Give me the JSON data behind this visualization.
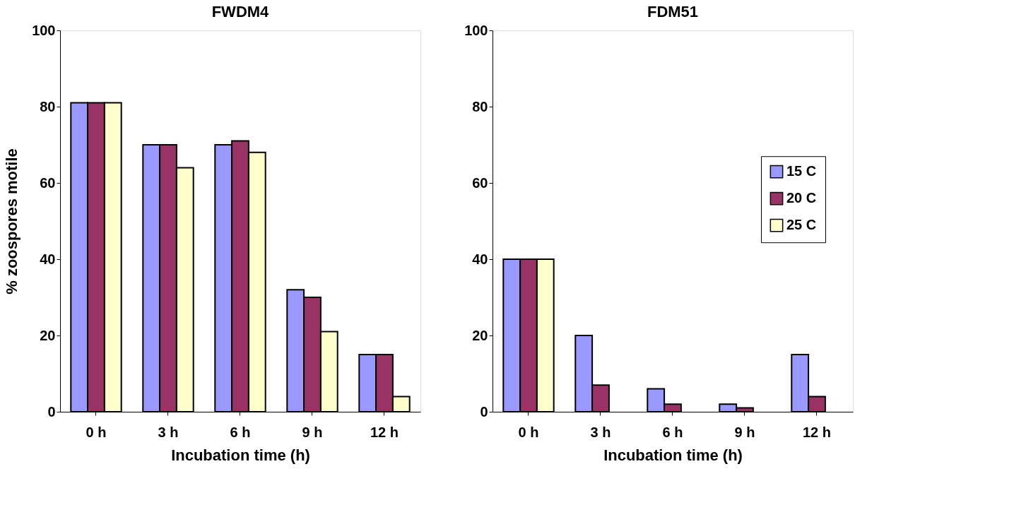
{
  "chart_data": [
    {
      "type": "bar",
      "title": "FWDM4",
      "xlabel": "Incubation time (h)",
      "ylabel": "% zoospores motile",
      "categories": [
        "0 h",
        "3 h",
        "6 h",
        "9 h",
        "12 h"
      ],
      "series": [
        {
          "color": "#9999ff",
          "values": [
            81,
            70,
            70,
            32,
            15
          ]
        },
        {
          "color": "#993366",
          "values": [
            81,
            70,
            71,
            30,
            15
          ]
        },
        {
          "color": "#ffffcc",
          "values": [
            81,
            64,
            68,
            21,
            4
          ]
        }
      ],
      "ylim": [
        0,
        100
      ],
      "yticks": [
        0,
        20,
        40,
        60,
        80,
        100
      ],
      "grid": false,
      "legend": false
    },
    {
      "type": "bar",
      "title": "FDM51",
      "xlabel": "Incubation time (h)",
      "categories": [
        "0 h",
        "3 h",
        "6 h",
        "9 h",
        "12 h"
      ],
      "series": [
        {
          "name": "15 C",
          "color": "#9999ff",
          "values": [
            40,
            20,
            6,
            2,
            15
          ]
        },
        {
          "name": "20 C",
          "color": "#993366",
          "values": [
            40,
            7,
            2,
            1,
            4
          ]
        },
        {
          "name": "25 C",
          "color": "#ffffcc",
          "values": [
            40,
            null,
            null,
            null,
            null
          ]
        }
      ],
      "ylim": [
        0,
        100
      ],
      "yticks": [
        0,
        20,
        40,
        60,
        80,
        100
      ],
      "grid": false,
      "legend": "right"
    }
  ]
}
